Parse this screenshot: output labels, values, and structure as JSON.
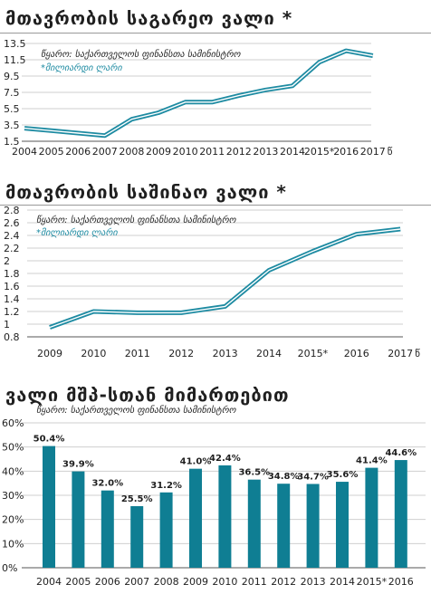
{
  "colors": {
    "line": "#1e8ba2",
    "bar": "#0f7e93",
    "text": "#1f1f1f",
    "grid": "#cfcfcf"
  },
  "chart_data": [
    {
      "type": "line",
      "title": "მთავრობის საგარეო ვალი *",
      "source": "წყარო: საქართველოს ფინანსთა სამინისტრო",
      "unit_note": "*მილიარდი ლარი",
      "x_suffix": "წ",
      "categories": [
        "2004",
        "2005",
        "2006",
        "2007",
        "2008",
        "2009",
        "2010",
        "2011",
        "2012",
        "2013",
        "2014",
        "2015*",
        "2016",
        "2017"
      ],
      "values": [
        3.1,
        2.8,
        2.5,
        2.2,
        4.2,
        5.0,
        6.3,
        6.3,
        7.1,
        7.8,
        8.3,
        11.2,
        12.6,
        12.0
      ],
      "ylim": [
        1.5,
        13.5
      ],
      "yticks": [
        "1.5",
        "3.5",
        "5.5",
        "7.5",
        "9.5",
        "11.5",
        "13.5"
      ],
      "yticks_all": [
        "1.5",
        "3.5",
        "5.5",
        "7.5",
        "9.5",
        "11.5",
        "13.5"
      ]
    },
    {
      "type": "line",
      "title": "მთავრობის საშინაო ვალი *",
      "source": "წყარო: საქართველოს ფინანსთა სამინისტრო",
      "unit_note": "*მილიარდი ლარი",
      "x_suffix": "წ",
      "categories": [
        "2009",
        "2010",
        "2011",
        "2012",
        "2013",
        "2014",
        "2015*",
        "2016",
        "2017"
      ],
      "values": [
        0.95,
        1.2,
        1.18,
        1.18,
        1.28,
        1.85,
        2.15,
        2.42,
        2.5
      ],
      "ylim": [
        0.8,
        2.8
      ],
      "yticks": [
        "0.8",
        "1",
        "1.2",
        "1.4",
        "1.6",
        "1.8",
        "2",
        "2.2",
        "2.4",
        "2.6",
        "2.8"
      ]
    },
    {
      "type": "bar",
      "title": "ვალი მშპ-სთან მიმართებით",
      "source": "წყარო: საქართველოს ფინანსთა სამინისტრო",
      "categories": [
        "2004",
        "2005",
        "2006",
        "2007",
        "2008",
        "2009",
        "2010",
        "2011",
        "2012",
        "2013",
        "2014",
        "2015*",
        "2016"
      ],
      "values": [
        50.4,
        39.9,
        32.0,
        25.5,
        31.2,
        41.0,
        42.4,
        36.5,
        34.8,
        34.7,
        35.6,
        41.4,
        44.6
      ],
      "labels": [
        "50.4%",
        "39.9%",
        "32.0%",
        "25.5%",
        "31.2%",
        "41.0%",
        "42.4%",
        "36.5%",
        "34.8%",
        "34.7%",
        "35.6%",
        "41.4%",
        "44.6%"
      ],
      "ylim": [
        0,
        60
      ],
      "yticks": [
        "0%",
        "10%",
        "20%",
        "30%",
        "40%",
        "50%",
        "60%"
      ]
    }
  ]
}
